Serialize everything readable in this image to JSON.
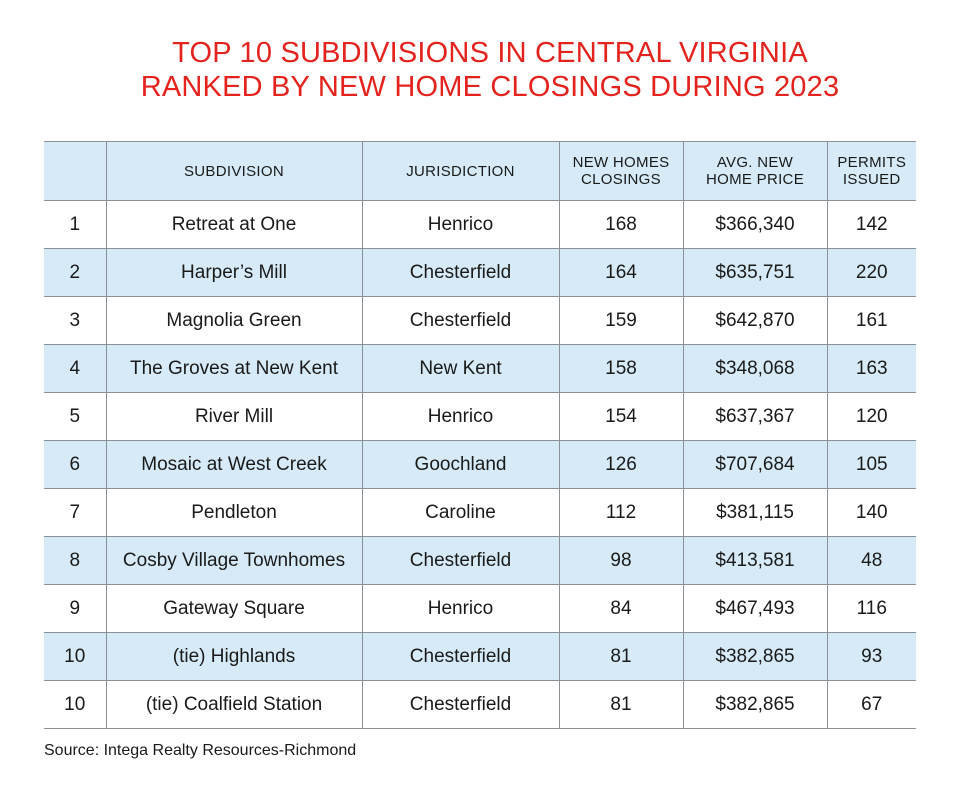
{
  "title": {
    "line1": "TOP 10 SUBDIVISIONS IN CENTRAL VIRGINIA",
    "line2": "RANKED BY NEW HOME CLOSINGS DURING 2023"
  },
  "colors": {
    "title": "#e4231f",
    "band": "#d6ebf7",
    "grid": "#8a9096"
  },
  "columns": {
    "rank": "",
    "subdivision": "SUBDIVISION",
    "jurisdiction": "JURISDICTION",
    "closings_1": "NEW HOMES",
    "closings_2": "CLOSINGS",
    "price_1": "AVG. NEW",
    "price_2": "HOME PRICE",
    "permits_1": "PERMITS",
    "permits_2": "ISSUED"
  },
  "chart_data": {
    "type": "table",
    "title": "TOP 10 SUBDIVISIONS IN CENTRAL VIRGINIA RANKED BY NEW HOME CLOSINGS DURING 2023",
    "headers": [
      "",
      "SUBDIVISION",
      "JURISDICTION",
      "NEW HOMES CLOSINGS",
      "AVG. NEW HOME PRICE",
      "PERMITS ISSUED"
    ],
    "rows": [
      [
        "1",
        "Retreat at One",
        "Henrico",
        "168",
        "$366,340",
        "142"
      ],
      [
        "2",
        "Harper’s Mill",
        "Chesterfield",
        "164",
        "$635,751",
        "220"
      ],
      [
        "3",
        "Magnolia Green",
        "Chesterfield",
        "159",
        "$642,870",
        "161"
      ],
      [
        "4",
        "The Groves at New Kent",
        "New Kent",
        "158",
        "$348,068",
        "163"
      ],
      [
        "5",
        "River Mill",
        "Henrico",
        "154",
        "$637,367",
        "120"
      ],
      [
        "6",
        "Mosaic at West Creek",
        "Goochland",
        "126",
        "$707,684",
        "105"
      ],
      [
        "7",
        "Pendleton",
        "Caroline",
        "112",
        "$381,115",
        "140"
      ],
      [
        "8",
        "Cosby Village Townhomes",
        "Chesterfield",
        "98",
        "$413,581",
        "48"
      ],
      [
        "9",
        "Gateway Square",
        "Henrico",
        "84",
        "$467,493",
        "116"
      ],
      [
        "10",
        "(tie) Highlands",
        "Chesterfield",
        "81",
        "$382,865",
        "93"
      ],
      [
        "10",
        "(tie) Coalfield Station",
        "Chesterfield",
        "81",
        "$382,865",
        "67"
      ]
    ],
    "source": "Source: Intega Realty Resources-Richmond"
  }
}
